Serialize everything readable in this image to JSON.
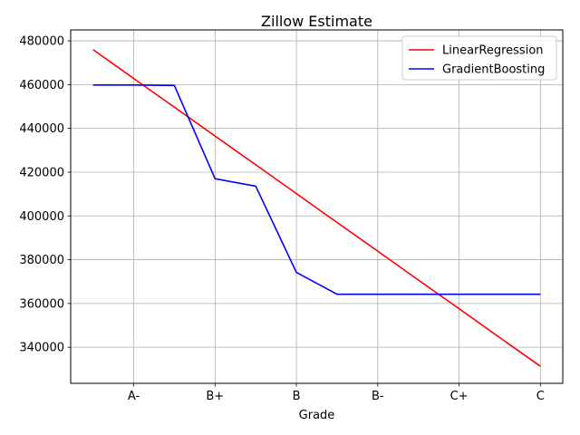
{
  "chart_data": {
    "type": "line",
    "title": "Zillow Estimate",
    "xlabel": "Grade",
    "ylabel": "",
    "x_tick_labels": [
      "A-",
      "B+",
      "B",
      "B-",
      "C+",
      "C"
    ],
    "x_tick_positions": [
      1,
      3,
      5,
      7,
      9,
      11
    ],
    "x": [
      0,
      1,
      2,
      3,
      4,
      5,
      6,
      7,
      8,
      9,
      10,
      11
    ],
    "xlim": [
      -0.55,
      11.55
    ],
    "ylim": [
      323500,
      485000
    ],
    "y_ticks": [
      340000,
      360000,
      380000,
      400000,
      420000,
      440000,
      460000,
      480000
    ],
    "y_tick_labels": [
      "340000",
      "360000",
      "380000",
      "400000",
      "420000",
      "440000",
      "460000",
      "480000"
    ],
    "grid": true,
    "legend_position": "top-right",
    "series": [
      {
        "name": "LinearRegression",
        "color": "#ff0000",
        "values": [
          476000,
          462800,
          449700,
          436500,
          423400,
          410200,
          397000,
          383900,
          370700,
          357600,
          344400,
          331300
        ]
      },
      {
        "name": "GradientBoosting",
        "color": "#0000ff",
        "values": [
          459800,
          459800,
          459600,
          417000,
          413600,
          374200,
          364200,
          364200,
          364200,
          364200,
          364200,
          364200
        ]
      }
    ]
  }
}
